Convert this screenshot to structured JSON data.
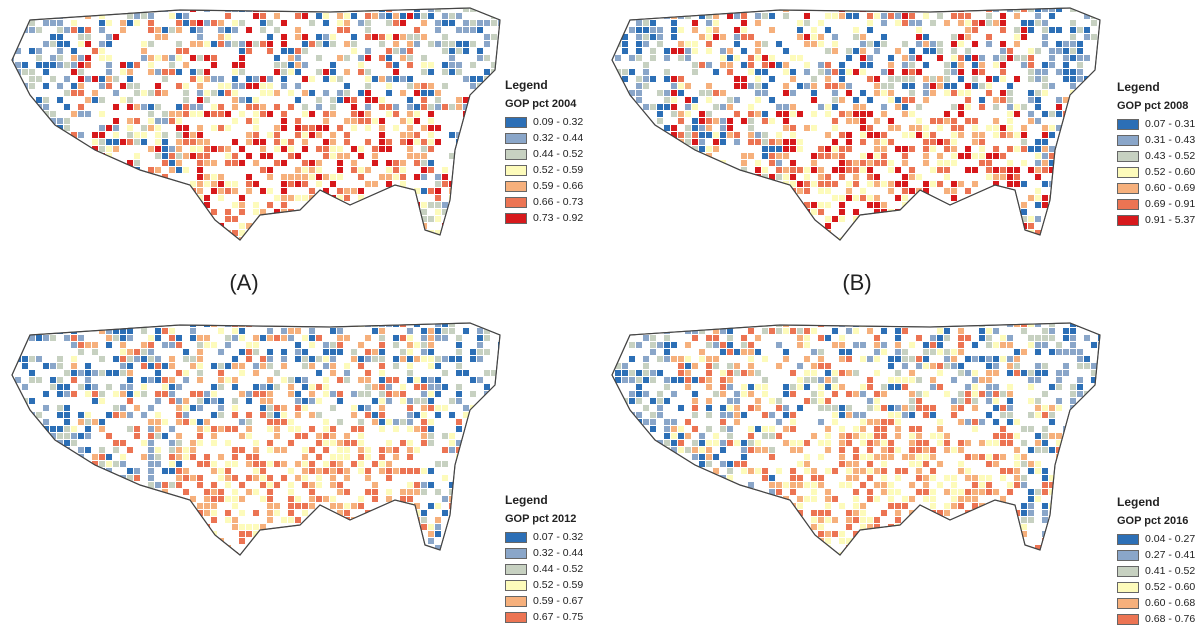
{
  "panels": [
    {
      "id": "A",
      "label": "(A)",
      "legend": {
        "title": "Legend",
        "field": "GOP pct 2004",
        "items": [
          {
            "label": "0.09 - 0.32",
            "color": "#2c6fb6"
          },
          {
            "label": "0.32 - 0.44",
            "color": "#8aa6c9"
          },
          {
            "label": "0.44 - 0.52",
            "color": "#c7d1c1"
          },
          {
            "label": "0.52 - 0.59",
            "color": "#fdfbbb"
          },
          {
            "label": "0.59 - 0.66",
            "color": "#f6b07c"
          },
          {
            "label": "0.66 - 0.73",
            "color": "#ec7453"
          },
          {
            "label": "0.73 - 0.92",
            "color": "#d7191c"
          }
        ]
      }
    },
    {
      "id": "B",
      "label": "(B)",
      "legend": {
        "title": "Legend",
        "field": "GOP pct 2008",
        "items": [
          {
            "label": "0.07 - 0.31",
            "color": "#2c6fb6"
          },
          {
            "label": "0.31 - 0.43",
            "color": "#8aa6c9"
          },
          {
            "label": "0.43 - 0.52",
            "color": "#c7d1c1"
          },
          {
            "label": "0.52 - 0.60",
            "color": "#fdfbbb"
          },
          {
            "label": "0.60 - 0.69",
            "color": "#f6b07c"
          },
          {
            "label": "0.69 - 0.91",
            "color": "#ec7453"
          },
          {
            "label": "0.91 - 5.37",
            "color": "#d7191c"
          }
        ]
      }
    },
    {
      "id": "C",
      "label": "",
      "legend": {
        "title": "Legend",
        "field": "GOP pct 2012",
        "items": [
          {
            "label": "0.07 - 0.32",
            "color": "#2c6fb6"
          },
          {
            "label": "0.32 - 0.44",
            "color": "#8aa6c9"
          },
          {
            "label": "0.44 - 0.52",
            "color": "#c7d1c1"
          },
          {
            "label": "0.52 - 0.59",
            "color": "#fdfbbb"
          },
          {
            "label": "0.59 - 0.67",
            "color": "#f6b07c"
          },
          {
            "label": "0.67 - 0.75",
            "color": "#ec7453"
          }
        ]
      }
    },
    {
      "id": "D",
      "label": "",
      "legend": {
        "title": "Legend",
        "field": "GOP pct 2016",
        "items": [
          {
            "label": "0.04 - 0.27",
            "color": "#2c6fb6"
          },
          {
            "label": "0.27 - 0.41",
            "color": "#8aa6c9"
          },
          {
            "label": "0.41 - 0.52",
            "color": "#c7d1c1"
          },
          {
            "label": "0.52 - 0.60",
            "color": "#fdfbbb"
          },
          {
            "label": "0.60 - 0.68",
            "color": "#f6b07c"
          },
          {
            "label": "0.68 - 0.76",
            "color": "#ec7453"
          }
        ]
      }
    }
  ]
}
